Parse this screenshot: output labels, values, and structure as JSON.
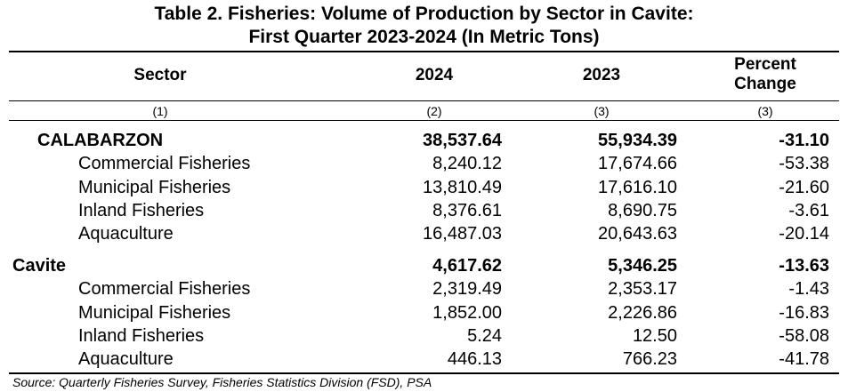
{
  "title": {
    "line1": "Table 2. Fisheries: Volume of Production by Sector in Cavite:",
    "line2": "First Quarter 2023-2024 (In Metric Tons)"
  },
  "headers": {
    "sector": "Sector",
    "y2024": "2024",
    "y2023": "2023",
    "pct_line1": "Percent",
    "pct_line2": "Change"
  },
  "column_numbers": [
    "(1)",
    "(2)",
    "(3)",
    "(3)"
  ],
  "rows": [
    {
      "sector": "CALABARZON",
      "v2024": "38,537.64",
      "v2023": "55,934.39",
      "pct": "-31.10"
    },
    {
      "sector": "Commercial Fisheries",
      "v2024": "8,240.12",
      "v2023": "17,674.66",
      "pct": "-53.38"
    },
    {
      "sector": "Municipal Fisheries",
      "v2024": "13,810.49",
      "v2023": "17,616.10",
      "pct": "-21.60"
    },
    {
      "sector": "Inland Fisheries",
      "v2024": "8,376.61",
      "v2023": "8,690.75",
      "pct": "-3.61"
    },
    {
      "sector": "Aquaculture",
      "v2024": "16,487.03",
      "v2023": "20,643.63",
      "pct": "-20.14"
    },
    {
      "sector": "Cavite",
      "v2024": "4,617.62",
      "v2023": "5,346.25",
      "pct": "-13.63"
    },
    {
      "sector": "Commercial Fisheries",
      "v2024": "2,319.49",
      "v2023": "2,353.17",
      "pct": "-1.43"
    },
    {
      "sector": "Municipal Fisheries",
      "v2024": "1,852.00",
      "v2023": "2,226.86",
      "pct": "-16.83"
    },
    {
      "sector": "Inland Fisheries",
      "v2024": "5.24",
      "v2023": "12.50",
      "pct": "-58.08"
    },
    {
      "sector": "Aquaculture",
      "v2024": "446.13",
      "v2023": "766.23",
      "pct": "-41.78"
    }
  ],
  "source": "Source: Quarterly Fisheries Survey, Fisheries Statistics Division (FSD), PSA"
}
